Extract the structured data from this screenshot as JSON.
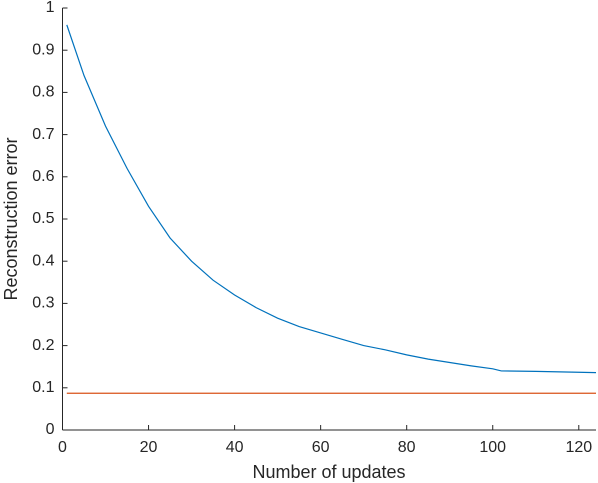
{
  "chart_data": {
    "type": "line",
    "xlabel": "Number of updates",
    "ylabel": "Reconstruction error",
    "xlim": [
      0,
      124
    ],
    "xticks": [
      0,
      20,
      40,
      60,
      80,
      100,
      120
    ],
    "ylim": [
      0,
      1
    ],
    "yticks": [
      0,
      0.1,
      0.2,
      0.3,
      0.4,
      0.5,
      0.6,
      0.7,
      0.8,
      0.9,
      1
    ],
    "series": [
      {
        "color": "#0072bd",
        "x": [
          1,
          5,
          10,
          15,
          20,
          25,
          30,
          35,
          40,
          45,
          50,
          55,
          60,
          65,
          70,
          75,
          80,
          85,
          90,
          95,
          100,
          102,
          110,
          124
        ],
        "values": [
          0.96,
          0.84,
          0.72,
          0.62,
          0.53,
          0.455,
          0.4,
          0.355,
          0.32,
          0.29,
          0.265,
          0.245,
          0.23,
          0.215,
          0.2,
          0.19,
          0.178,
          0.168,
          0.16,
          0.152,
          0.145,
          0.14,
          0.139,
          0.136
        ]
      },
      {
        "color": "#d95319",
        "x": [
          1,
          124
        ],
        "values": [
          0.087,
          0.087
        ]
      }
    ]
  }
}
